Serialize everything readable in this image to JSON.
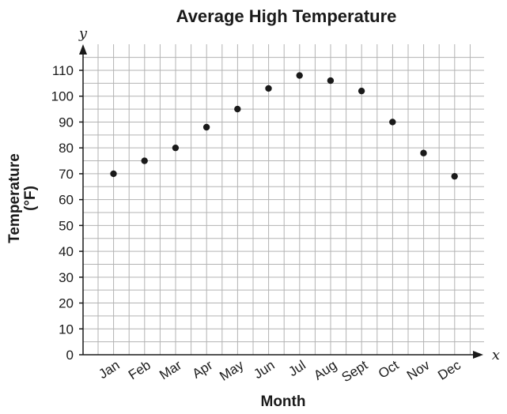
{
  "chart_data": {
    "type": "scatter",
    "title": "Average High Temperature",
    "xlabel": "Month",
    "ylabel_lines": [
      "Temperature",
      "(°F)"
    ],
    "x_var": "x",
    "y_var": "y",
    "categories": [
      "Jan",
      "Feb",
      "Mar",
      "Apr",
      "May",
      "Jun",
      "Jul",
      "Aug",
      "Sept",
      "Oct",
      "Nov",
      "Dec"
    ],
    "values": [
      70,
      75,
      80,
      88,
      95,
      103,
      108,
      106,
      102,
      90,
      78,
      69
    ],
    "ylim": [
      0,
      110
    ],
    "yticks": [
      0,
      10,
      20,
      30,
      40,
      50,
      60,
      70,
      80,
      90,
      100,
      110
    ],
    "grid": true,
    "colors": {
      "points": "#1a1a1a",
      "grid": "#b3b3b3",
      "axes": "#1a1a1a"
    }
  }
}
